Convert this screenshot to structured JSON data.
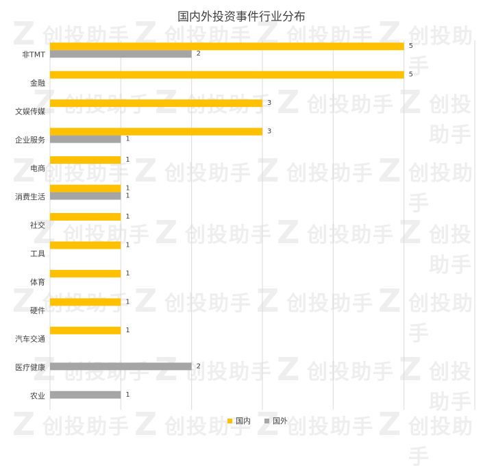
{
  "watermark": "创投助手",
  "watermark_logo": "Z",
  "chart_data": {
    "type": "bar",
    "orientation": "horizontal",
    "title": "国内外投资事件行业分布",
    "categories": [
      "非TMT",
      "金融",
      "文娱传媒",
      "企业服务",
      "电商",
      "消费生活",
      "社交",
      "工具",
      "体育",
      "硬件",
      "汽车交通",
      "医疗健康",
      "农业"
    ],
    "series": [
      {
        "name": "国内",
        "color": "#FFC000",
        "values": [
          5,
          5,
          3,
          3,
          1,
          1,
          1,
          1,
          1,
          1,
          1,
          null,
          null
        ]
      },
      {
        "name": "国外",
        "color": "#A5A5A5",
        "values": [
          2,
          null,
          null,
          1,
          null,
          1,
          null,
          null,
          null,
          null,
          null,
          2,
          1
        ]
      }
    ],
    "xlim": [
      0,
      6
    ],
    "grid": true,
    "legend_position": "bottom"
  }
}
